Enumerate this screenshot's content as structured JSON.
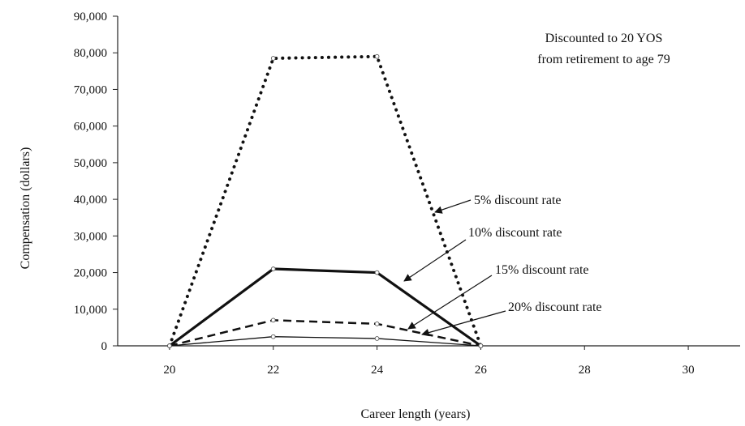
{
  "chart_data": {
    "type": "line",
    "xlabel": "Career length (years)",
    "ylabel": "Compensation (dollars)",
    "annotation": [
      "Discounted to 20 YOS",
      "from retirement to age 79"
    ],
    "xlim": [
      19,
      31
    ],
    "ylim": [
      0,
      90000
    ],
    "x_ticks": [
      "20",
      "22",
      "24",
      "26",
      "28",
      "30"
    ],
    "y_ticks": [
      "0",
      "10,000",
      "20,000",
      "30,000",
      "40,000",
      "50,000",
      "60,000",
      "70,000",
      "80,000",
      "90,000"
    ],
    "x": [
      20,
      22,
      24,
      26
    ],
    "series": [
      {
        "name": "5% discount rate",
        "values": [
          0,
          78500,
          79000,
          0
        ],
        "style": "dotted",
        "color": "#111111"
      },
      {
        "name": "10% discount rate",
        "values": [
          0,
          21000,
          20000,
          0
        ],
        "style": "solid-thick",
        "color": "#111111"
      },
      {
        "name": "15% discount rate",
        "values": [
          0,
          7000,
          6000,
          0
        ],
        "style": "dashed",
        "color": "#111111"
      },
      {
        "name": "20% discount rate",
        "values": [
          0,
          2500,
          2000,
          0
        ],
        "style": "solid-thin",
        "color": "#111111"
      }
    ]
  }
}
